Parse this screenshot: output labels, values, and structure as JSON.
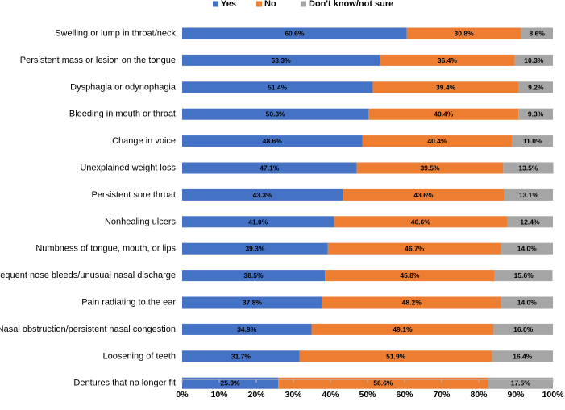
{
  "chart_data": {
    "type": "bar",
    "orientation": "horizontal",
    "stacked": true,
    "title": "",
    "xlabel": "",
    "ylabel": "",
    "xlim": [
      0,
      100
    ],
    "x_ticks": [
      "0%",
      "10%",
      "20%",
      "30%",
      "40%",
      "50%",
      "60%",
      "70%",
      "80%",
      "90%",
      "100%"
    ],
    "legend_position": "top-center",
    "grid": false,
    "categories": [
      "Swelling or lump in throat/neck",
      "Persistent mass or lesion on the tongue",
      "Dysphagia or odynophagia",
      "Bleeding in mouth or throat",
      "Change in voice",
      "Unexplained weight loss",
      "Persistent sore throat",
      "Nonhealing ulcers",
      "Numbness of tongue, mouth, or lips",
      "Frequent nose bleeds/unusual nasal discharge",
      "Pain radiating to the ear",
      "Nasal obstruction/persistent nasal congestion",
      "Loosening of teeth",
      "Dentures that no longer fit"
    ],
    "series": [
      {
        "name": "Yes",
        "color": "#4472C4",
        "values": [
          60.6,
          53.3,
          51.4,
          50.3,
          48.6,
          47.1,
          43.3,
          41.0,
          39.3,
          38.5,
          37.8,
          34.9,
          31.7,
          25.9
        ],
        "labels": [
          "60.6%",
          "53.3%",
          "51.4%",
          "50.3%",
          "48.6%",
          "47.1%",
          "43.3%",
          "41.0%",
          "39.3%",
          "38.5%",
          "37.8%",
          "34.9%",
          "31.7%",
          "25.9%"
        ]
      },
      {
        "name": "No",
        "color": "#ED7D31",
        "values": [
          30.8,
          36.4,
          39.4,
          40.4,
          40.4,
          39.5,
          43.6,
          46.6,
          46.7,
          45.8,
          48.2,
          49.1,
          51.9,
          56.6
        ],
        "labels": [
          "30.8%",
          "36.4%",
          "39.4%",
          "40.4%",
          "40.4%",
          "39.5%",
          "43.6%",
          "46.6%",
          "46.7%",
          "45.8%",
          "48.2%",
          "49.1%",
          "51.9%",
          "56.6%"
        ]
      },
      {
        "name": "Don't know/not sure",
        "color": "#A5A5A5",
        "values": [
          8.6,
          10.3,
          9.2,
          9.3,
          11.0,
          13.5,
          13.1,
          12.4,
          14.0,
          15.6,
          14.0,
          16.0,
          16.4,
          17.5
        ],
        "labels": [
          "8.6%",
          "10.3%",
          "9.2%",
          "9.3%",
          "11.0%",
          "13.5%",
          "13.1%",
          "12.4%",
          "14.0%",
          "15.6%",
          "14.0%",
          "16.0%",
          "16.4%",
          "17.5%"
        ]
      }
    ]
  }
}
